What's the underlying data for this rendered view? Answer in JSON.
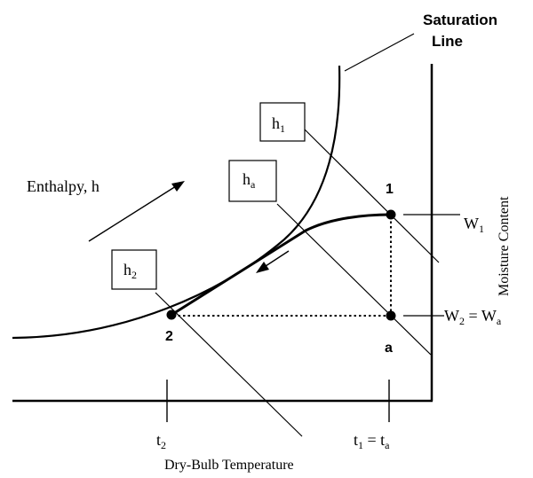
{
  "diagram": {
    "saturation_label_line1": "Saturation",
    "saturation_label_line2": "Line",
    "enthalpy_label": "Enthalpy, h",
    "moisture_axis_label": "Moisture Content",
    "drybulb_axis_label": "Dry-Bulb Temperature",
    "boxes": [
      {
        "main": "h",
        "sub": "1"
      },
      {
        "main": "h",
        "sub": "a"
      },
      {
        "main": "h",
        "sub": "2"
      }
    ],
    "points": [
      {
        "label": "1"
      },
      {
        "label": "2"
      },
      {
        "label": "a"
      }
    ],
    "moisture_ticks": [
      {
        "text": "W",
        "sub": "1"
      },
      {
        "text": "W",
        "sub": "2",
        "rest": " = W",
        "rest_sub": "a"
      }
    ],
    "temp_ticks": [
      {
        "text": "t",
        "sub": "2"
      },
      {
        "text": "t",
        "sub": "1",
        "rest": " = t",
        "rest_sub": "a"
      }
    ]
  }
}
